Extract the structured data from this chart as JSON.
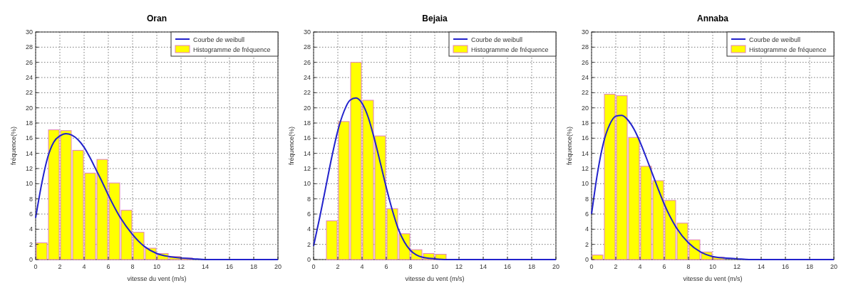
{
  "chart_data": [
    {
      "type": "histogram",
      "title": "Oran",
      "xlabel": "vitesse du vent (m/s)",
      "ylabel": "fréquence(%)",
      "xlim": [
        0,
        20
      ],
      "xticks": [
        0,
        2,
        4,
        6,
        8,
        10,
        12,
        14,
        16,
        18,
        20
      ],
      "ylim": [
        0,
        30
      ],
      "yticks": [
        0,
        2,
        4,
        6,
        8,
        10,
        12,
        14,
        16,
        18,
        20,
        22,
        24,
        26,
        28,
        30
      ],
      "grid": true,
      "legend": "top right",
      "series": [
        {
          "name": "Courbe de weibull",
          "type": "line",
          "color": "#2222cc",
          "x": [
            0,
            0.5,
            1,
            1.5,
            2,
            2.5,
            3,
            3.5,
            4,
            4.5,
            5,
            5.5,
            6,
            7,
            8,
            9,
            10,
            11,
            12,
            13,
            14,
            20
          ],
          "values": [
            5.5,
            10,
            13.5,
            15.5,
            16.3,
            16.6,
            16.4,
            15.8,
            14.8,
            13.4,
            11.8,
            10.2,
            8.5,
            5.5,
            3.3,
            1.7,
            0.8,
            0.4,
            0.2,
            0.1,
            0,
            0
          ]
        },
        {
          "name": "Histogramme de fréquence",
          "color": "#ffff00",
          "bins": [
            0,
            1,
            2,
            3,
            4,
            5,
            6,
            7,
            8,
            9,
            10,
            11,
            12,
            13,
            14,
            15,
            16,
            17,
            18,
            19,
            20
          ],
          "values": [
            2.2,
            17.1,
            17,
            14.4,
            11.4,
            13.2,
            10.1,
            6.5,
            3.6,
            1.5,
            0.8,
            0.4,
            0.2,
            0,
            0,
            0,
            0,
            0,
            0,
            0
          ]
        }
      ]
    },
    {
      "type": "histogram",
      "title": "Bejaia",
      "xlabel": "vitesse du vent (m/s)",
      "ylabel": "fréquence(%)",
      "xlim": [
        0,
        20
      ],
      "xticks": [
        0,
        2,
        4,
        6,
        8,
        10,
        12,
        14,
        16,
        18,
        20
      ],
      "ylim": [
        0,
        30
      ],
      "yticks": [
        0,
        2,
        4,
        6,
        8,
        10,
        12,
        14,
        16,
        18,
        20,
        22,
        24,
        26,
        28,
        30
      ],
      "grid": true,
      "legend": "top right",
      "series": [
        {
          "name": "Courbe de weibull",
          "type": "line",
          "color": "#2222cc",
          "x": [
            0,
            0.5,
            1,
            1.5,
            2,
            2.5,
            3,
            3.5,
            4,
            4.5,
            5,
            5.5,
            6,
            6.5,
            7,
            7.5,
            8,
            8.5,
            9,
            10,
            11,
            20
          ],
          "values": [
            1.8,
            5.5,
            9.5,
            13.5,
            17,
            19.5,
            21,
            21.3,
            20.6,
            18.8,
            16,
            12.8,
            9.5,
            6.5,
            4,
            2.3,
            1.2,
            0.6,
            0.3,
            0.1,
            0,
            0
          ]
        },
        {
          "name": "Histogramme de fréquence",
          "color": "#ffff00",
          "bins": [
            0,
            1,
            2,
            3,
            4,
            5,
            6,
            7,
            8,
            9,
            10,
            11,
            12,
            13,
            14,
            15,
            16,
            17,
            18,
            19,
            20
          ],
          "values": [
            0,
            5.1,
            18.2,
            26,
            21,
            16.3,
            6.7,
            3.4,
            1.3,
            0.8,
            0.7,
            0,
            0,
            0,
            0,
            0,
            0,
            0,
            0,
            0
          ]
        }
      ]
    },
    {
      "type": "histogram",
      "title": "Annaba",
      "xlabel": "vitesse du vent (m/s)",
      "ylabel": "fréquence(%)",
      "xlim": [
        0,
        20
      ],
      "xticks": [
        0,
        2,
        4,
        6,
        8,
        10,
        12,
        14,
        16,
        18,
        20
      ],
      "ylim": [
        0,
        30
      ],
      "yticks": [
        0,
        2,
        4,
        6,
        8,
        10,
        12,
        14,
        16,
        18,
        20,
        22,
        24,
        26,
        28,
        30
      ],
      "grid": true,
      "legend": "top right",
      "series": [
        {
          "name": "Courbe de weibull",
          "type": "line",
          "color": "#2222cc",
          "x": [
            0,
            0.5,
            1,
            1.5,
            2,
            2.5,
            3,
            3.5,
            4,
            4.5,
            5,
            5.5,
            6,
            7,
            8,
            9,
            10,
            11,
            12,
            13,
            20
          ],
          "values": [
            6,
            11.5,
            15.5,
            17.8,
            18.9,
            19,
            18.4,
            17.2,
            15.5,
            13.5,
            11.4,
            9.3,
            7.3,
            4.2,
            2.2,
            1,
            0.4,
            0.2,
            0.1,
            0,
            0
          ]
        },
        {
          "name": "Histogramme de fréquence",
          "color": "#ffff00",
          "bins": [
            0,
            1,
            2,
            3,
            4,
            5,
            6,
            7,
            8,
            9,
            10,
            11,
            12,
            13,
            14,
            15,
            16,
            17,
            18,
            19,
            20
          ],
          "values": [
            0.6,
            21.8,
            21.6,
            16.1,
            12.3,
            10.4,
            7.8,
            4.8,
            2.6,
            1,
            0.3,
            0,
            0,
            0,
            0,
            0,
            0,
            0,
            0,
            0
          ]
        }
      ]
    }
  ]
}
